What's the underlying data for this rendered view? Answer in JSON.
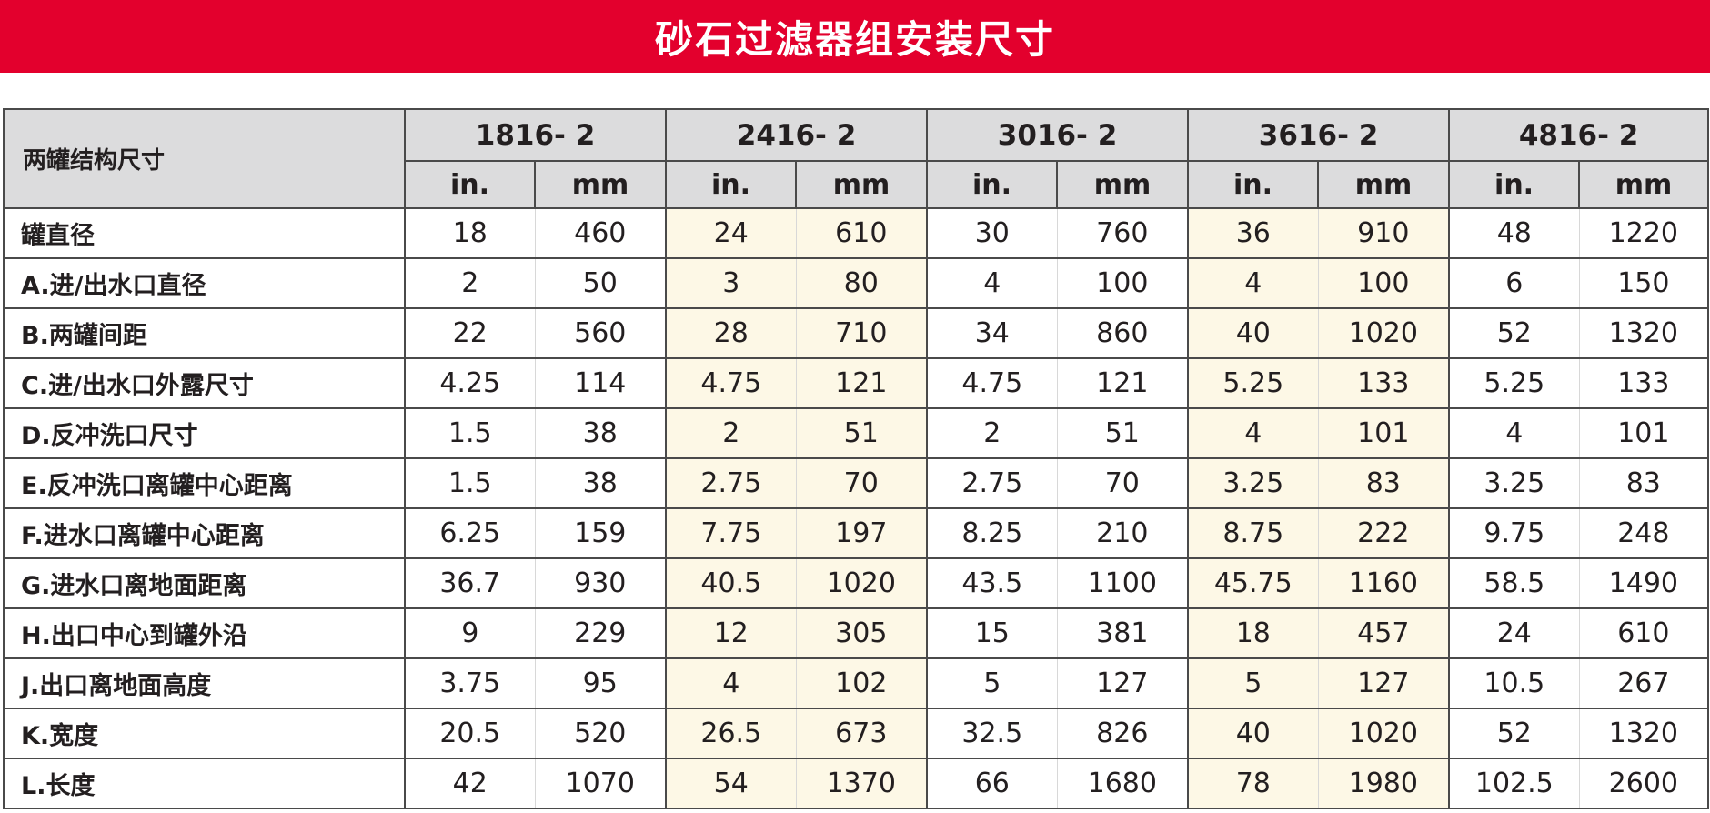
{
  "title": "砂石过滤器组安装尺寸",
  "header": {
    "corner_label": "两罐结构尺寸",
    "models": [
      "1816- 2",
      "2416- 2",
      "3016- 2",
      "3616- 2",
      "4816- 2"
    ],
    "unit_in": "in.",
    "unit_mm": "mm"
  },
  "rows": [
    {
      "label": "罐直径",
      "values": [
        "18",
        "460",
        "24",
        "610",
        "30",
        "760",
        "36",
        "910",
        "48",
        "1220"
      ]
    },
    {
      "label": "A.进/出水口直径",
      "values": [
        "2",
        "50",
        "3",
        "80",
        "4",
        "100",
        "4",
        "100",
        "6",
        "150"
      ]
    },
    {
      "label": "B.两罐间距",
      "values": [
        "22",
        "560",
        "28",
        "710",
        "34",
        "860",
        "40",
        "1020",
        "52",
        "1320"
      ]
    },
    {
      "label": "C.进/出水口外露尺寸",
      "values": [
        "4.25",
        "114",
        "4.75",
        "121",
        "4.75",
        "121",
        "5.25",
        "133",
        "5.25",
        "133"
      ]
    },
    {
      "label": "D.反冲洗口尺寸",
      "values": [
        "1.5",
        "38",
        "2",
        "51",
        "2",
        "51",
        "4",
        "101",
        "4",
        "101"
      ]
    },
    {
      "label": "E.反冲洗口离罐中心距离",
      "values": [
        "1.5",
        "38",
        "2.75",
        "70",
        "2.75",
        "70",
        "3.25",
        "83",
        "3.25",
        "83"
      ]
    },
    {
      "label": "F.进水口离罐中心距离",
      "values": [
        "6.25",
        "159",
        "7.75",
        "197",
        "8.25",
        "210",
        "8.75",
        "222",
        "9.75",
        "248"
      ]
    },
    {
      "label": "G.进水口离地面距离",
      "values": [
        "36.7",
        "930",
        "40.5",
        "1020",
        "43.5",
        "1100",
        "45.75",
        "1160",
        "58.5",
        "1490"
      ]
    },
    {
      "label": "H.出口中心到罐外沿",
      "values": [
        "9",
        "229",
        "12",
        "305",
        "15",
        "381",
        "18",
        "457",
        "24",
        "610"
      ]
    },
    {
      "label": "J.出口离地面高度",
      "values": [
        "3.75",
        "95",
        "4",
        "102",
        "5",
        "127",
        "5",
        "127",
        "10.5",
        "267"
      ]
    },
    {
      "label": "K.宽度",
      "values": [
        "20.5",
        "520",
        "26.5",
        "673",
        "32.5",
        "826",
        "40",
        "1020",
        "52",
        "1320"
      ]
    },
    {
      "label": "L.长度",
      "values": [
        "42",
        "1070",
        "54",
        "1370",
        "66",
        "1680",
        "78",
        "1980",
        "102.5",
        "2600"
      ]
    }
  ],
  "colors": {
    "title_bg": "#e3002d",
    "header_bg": "#dcdcdd",
    "highlight_bg": "#fdf8e6",
    "border": "#4a4a4a"
  }
}
